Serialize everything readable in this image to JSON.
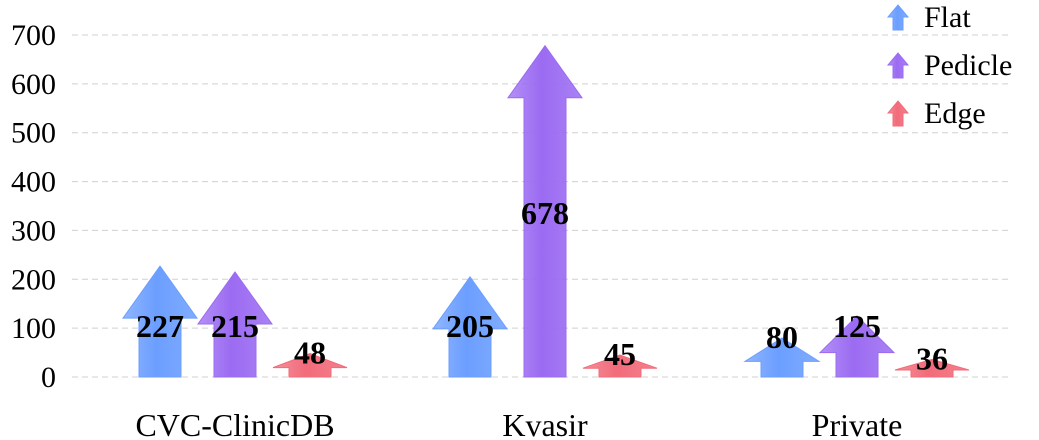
{
  "chart_data": {
    "type": "bar",
    "categories": [
      "CVC-ClinicDB",
      "Kvasir",
      "Private"
    ],
    "series": [
      {
        "name": "Flat",
        "values": [
          227,
          205,
          80
        ],
        "color": "#6b9eff"
      },
      {
        "name": "Pedicle",
        "values": [
          215,
          678,
          125
        ],
        "color": "#9b6bf2"
      },
      {
        "name": "Edge",
        "values": [
          48,
          45,
          36
        ],
        "color": "#f26b7a"
      }
    ],
    "title": "",
    "xlabel": "",
    "ylabel": "",
    "ylim": [
      0,
      700
    ],
    "yticks": [
      0,
      100,
      200,
      300,
      400,
      500,
      600,
      700
    ],
    "grid": true,
    "legend": "top-right",
    "mark_style": "arrow"
  }
}
